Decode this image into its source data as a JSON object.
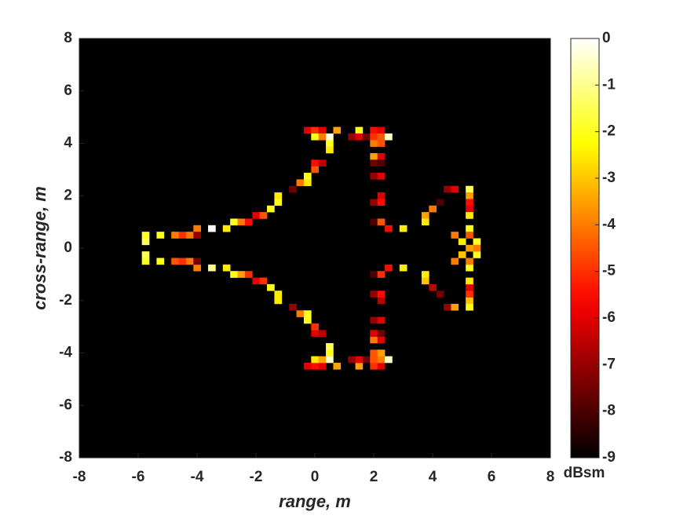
{
  "chart_data": {
    "type": "heatmap",
    "xlabel": "range, m",
    "ylabel": "cross-range, m",
    "xlim": [
      -8,
      8
    ],
    "ylim": [
      -8,
      8
    ],
    "xticks": [
      -8,
      -6,
      -4,
      -2,
      0,
      2,
      4,
      6,
      8
    ],
    "yticks": [
      -8,
      -6,
      -4,
      -2,
      0,
      2,
      4,
      6,
      8
    ],
    "colormap": "hot",
    "background": "#000000",
    "colorbar": {
      "label": "dBsm",
      "lim": [
        -9,
        0
      ],
      "ticks": [
        0,
        -1,
        -2,
        -3,
        -4,
        -5,
        -6,
        -7,
        -8,
        -9
      ]
    },
    "x": [
      -5.75,
      -5.75,
      -5.25,
      -4.75,
      -4.5,
      -4.25,
      -4,
      -4,
      -3.5,
      -3,
      -2.75,
      -2.5,
      -2.25,
      -2,
      -1.75,
      -1.5,
      -1.25,
      -1.25,
      -0.75,
      -0.5,
      -0.25,
      -0.25,
      0,
      0,
      0.25,
      -0.25,
      0,
      0.25,
      0.75,
      0,
      0.25,
      0.5,
      0.5,
      0.5,
      1.25,
      1.5,
      1.5,
      1.75,
      2,
      2.25,
      2,
      2.25,
      2.5,
      2,
      2.25,
      2,
      2.25,
      2,
      2.25,
      2,
      2.25,
      2.25,
      2,
      2.25,
      2,
      2.25,
      2.5,
      3,
      3.75,
      3.75,
      4,
      4.25,
      4.5,
      4.75,
      5.25,
      5.25,
      5.25,
      5.25,
      5.25,
      5.25,
      5.25,
      5,
      4.75,
      5.5,
      -5.75,
      -5.75,
      -5.25,
      -4.75,
      -4.5,
      -4.25,
      -4,
      -4,
      -3.5,
      -3,
      -2.75,
      -2.5,
      -2.25,
      -2,
      -1.75,
      -1.5,
      -1.25,
      -1.25,
      -0.75,
      -0.5,
      -0.25,
      -0.25,
      0,
      0,
      0.25,
      -0.25,
      0,
      0.25,
      0.75,
      0,
      0.25,
      0.5,
      0.5,
      0.5,
      1.25,
      1.5,
      1.5,
      1.75,
      2,
      2.25,
      2,
      2.25,
      2.5,
      2,
      2.25,
      2,
      2.25,
      2,
      2.25,
      2,
      2.25,
      2.25,
      2,
      2.25,
      2,
      2.25,
      2.5,
      3,
      3.75,
      3.75,
      4,
      4.25,
      4.5,
      4.75,
      5.25,
      5.25,
      5.25,
      5.25,
      5.25,
      5.25,
      5.25,
      5,
      4.75,
      5.5,
      5.5,
      5.25
    ],
    "y": [
      0.5,
      0.25,
      0.5,
      0.5,
      0.5,
      0.5,
      0.75,
      0.5,
      0.75,
      0.75,
      1,
      1,
      1,
      1.25,
      1.25,
      1.5,
      1.75,
      2,
      2.25,
      2.5,
      2.75,
      2.5,
      3.25,
      3,
      3.25,
      4.5,
      4.5,
      4.5,
      4.5,
      4.25,
      4.25,
      4.25,
      4,
      3.75,
      4.25,
      4.5,
      4.25,
      4.25,
      4.5,
      4.5,
      4.25,
      4.25,
      4.25,
      4,
      4,
      3.5,
      3.5,
      3.25,
      3.25,
      2.75,
      2.75,
      2,
      1.75,
      1.75,
      1,
      1,
      0.75,
      0.75,
      1.25,
      1,
      1.5,
      1.75,
      2.25,
      2.25,
      2.25,
      2,
      1.75,
      1.5,
      1.25,
      0.75,
      0.5,
      0.25,
      0.5,
      0.25,
      -0.5,
      -0.25,
      -0.5,
      -0.5,
      -0.5,
      -0.5,
      -0.75,
      -0.5,
      -0.75,
      -0.75,
      -1,
      -1,
      -1,
      -1.25,
      -1.25,
      -1.5,
      -1.75,
      -2,
      -2.25,
      -2.5,
      -2.75,
      -2.5,
      -3.25,
      -3,
      -3.25,
      -4.5,
      -4.5,
      -4.5,
      -4.5,
      -4.25,
      -4.25,
      -4.25,
      -4,
      -3.75,
      -4.25,
      -4.5,
      -4.25,
      -4.25,
      -4.5,
      -4.5,
      -4.25,
      -4.25,
      -4.25,
      -4,
      -4,
      -3.5,
      -3.5,
      -3.25,
      -3.25,
      -2.75,
      -2.75,
      -2,
      -1.75,
      -1.75,
      -1,
      -1,
      -0.75,
      -0.75,
      -1.25,
      -1,
      -1.5,
      -1.75,
      -2.25,
      -2.25,
      -2.25,
      -2,
      -1.75,
      -1.5,
      -1.25,
      -0.75,
      -0.5,
      -0.25,
      -0.5,
      -0.25,
      0,
      0
    ],
    "values": [
      -2,
      -1.5,
      -2,
      -4,
      -5,
      -4,
      -4,
      -7,
      0,
      -2.5,
      -2,
      -4,
      -5.5,
      -6,
      -4.5,
      -2,
      -2,
      -2.5,
      -7.5,
      -4,
      -2,
      -2.5,
      -5.5,
      -4.5,
      -6.5,
      -6,
      -5,
      -6,
      -3.5,
      -2,
      -4,
      -0.3,
      -2,
      -2.5,
      -7,
      -2,
      -6,
      -7.5,
      -5.5,
      -6,
      -5,
      -4.5,
      -0.5,
      -4,
      -4.5,
      -3.5,
      -6,
      -7.5,
      -8,
      -7,
      -6,
      -6,
      -7,
      -5.5,
      -8,
      -4.5,
      -5.5,
      -2.5,
      -3.5,
      -2.5,
      -4,
      -8,
      -7,
      -6,
      -1.5,
      -3.5,
      -5.5,
      -6,
      -2.5,
      -2,
      -4.5,
      -2.5,
      -4,
      -2,
      -2,
      -1.5,
      -2,
      -4.5,
      -5,
      -4,
      -4,
      -7.5,
      -1,
      -2.5,
      -2,
      -3.5,
      -5,
      -6,
      -5,
      -2,
      -2.5,
      -2.5,
      -7,
      -4,
      -2,
      -2,
      -6,
      -5,
      -6.5,
      -6,
      -5.5,
      -6,
      -3.5,
      -2.5,
      -3.5,
      -0.5,
      -2,
      -1.5,
      -7,
      -3.5,
      -6,
      -7.5,
      -5,
      -6,
      -4.5,
      -4,
      -0.5,
      -4.5,
      -3.5,
      -4,
      -6,
      -6,
      -7.5,
      -7,
      -6,
      -6.5,
      -7,
      -5.5,
      -8,
      -5,
      -5.5,
      -2.5,
      -3,
      -2.5,
      -6.5,
      -7.5,
      -7,
      -3.5,
      -2,
      -3,
      -5,
      -6,
      -2.5,
      -2,
      -4,
      -3,
      -4,
      -2,
      -4,
      -3.5
    ]
  }
}
